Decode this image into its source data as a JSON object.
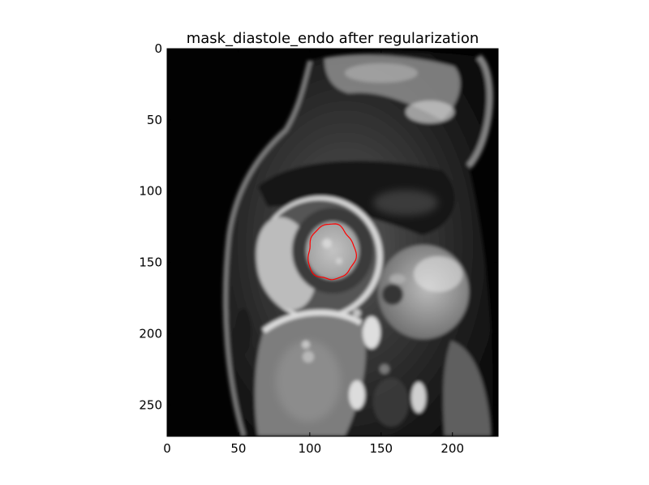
{
  "figure": {
    "title": "mask_diastole_endo after regularization"
  },
  "axes": {
    "x_ticks": [
      0,
      50,
      100,
      150,
      200
    ],
    "y_ticks": [
      0,
      50,
      100,
      150,
      200,
      250
    ],
    "xlim": [
      0,
      232
    ],
    "ylim": [
      272,
      0
    ]
  },
  "overlay": {
    "contour_color": "#ff0000",
    "contour_center": [
      115,
      143
    ],
    "contour_radii": [
      16.5,
      19.5
    ]
  }
}
